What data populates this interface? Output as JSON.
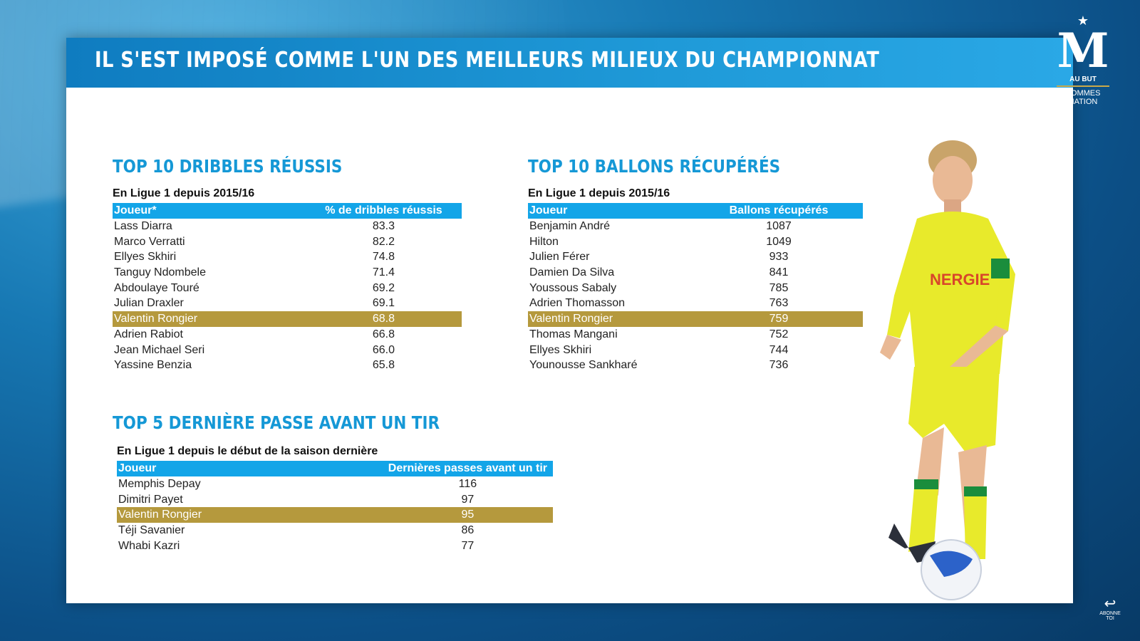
{
  "banner": {
    "title": "IL S'EST IMPOSÉ COMME L'UN DES MEILLEURS MILIEUX DU CHAMPIONNAT"
  },
  "logo": {
    "text1": "AU BUT",
    "text2": "SOMMES",
    "text3": "NATION"
  },
  "subscribe": {
    "label": "ABONNE TOI"
  },
  "dribbles": {
    "title": "TOP 10 DRIBBLES RÉUSSIS",
    "subtitle": "En Ligue 1 depuis 2015/16",
    "headers": [
      "Joueur*",
      "% de dribbles réussis"
    ],
    "rows": [
      [
        "Lass Diarra",
        "83.3"
      ],
      [
        "Marco Verratti",
        "82.2"
      ],
      [
        "Ellyes Skhiri",
        "74.8"
      ],
      [
        "Tanguy Ndombele",
        "71.4"
      ],
      [
        "Abdoulaye Touré",
        "69.2"
      ],
      [
        "Julian Draxler",
        "69.1"
      ],
      [
        "Valentin Rongier",
        "68.8"
      ],
      [
        "Adrien Rabiot",
        "66.8"
      ],
      [
        "Jean Michael Seri",
        "66.0"
      ],
      [
        "Yassine Benzia",
        "65.8"
      ]
    ],
    "highlight_row": 6
  },
  "ballons": {
    "title": "TOP 10 BALLONS RÉCUPÉRÉS",
    "subtitle": "En Ligue 1 depuis 2015/16",
    "headers": [
      "Joueur",
      "Ballons récupérés"
    ],
    "rows": [
      [
        "Benjamin André",
        "1087"
      ],
      [
        "Hilton",
        "1049"
      ],
      [
        "Julien Férer",
        "933"
      ],
      [
        "Damien Da Silva",
        "841"
      ],
      [
        "Youssous Sabaly",
        "785"
      ],
      [
        "Adrien Thomasson",
        "763"
      ],
      [
        "Valentin Rongier",
        "759"
      ],
      [
        "Thomas Mangani",
        "752"
      ],
      [
        "Ellyes Skhiri",
        "744"
      ],
      [
        "Younousse Sankharé",
        "736"
      ]
    ],
    "highlight_row": 6
  },
  "passes": {
    "title": "TOP 5 DERNIÈRE PASSE AVANT UN TIR",
    "subtitle": "En Ligue 1 depuis le début de la saison dernière",
    "headers": [
      "Joueur",
      "Dernières passes avant un tir"
    ],
    "rows": [
      [
        "Memphis Depay",
        "116"
      ],
      [
        "Dimitri Payet",
        "97"
      ],
      [
        "Valentin Rongier",
        "95"
      ],
      [
        "Téji Savanier",
        "86"
      ],
      [
        "Whabi Kazri",
        "77"
      ]
    ],
    "highlight_row": 2
  },
  "colors": {
    "header_blue": "#13a5e8",
    "title_blue": "#1598d6",
    "highlight_gold": "#b5993d"
  }
}
